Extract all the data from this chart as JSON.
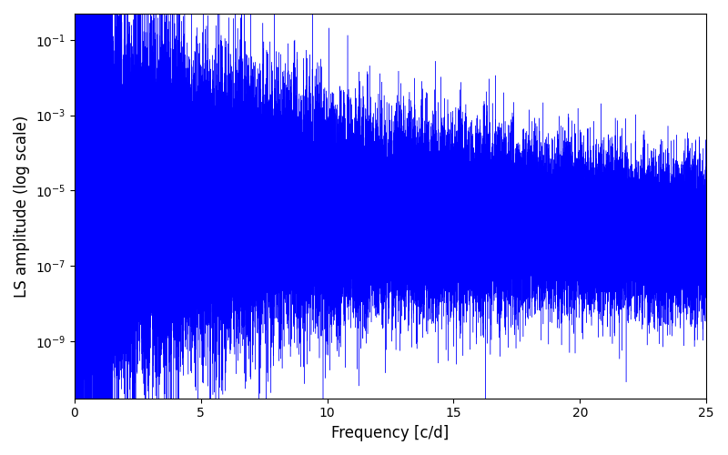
{
  "xlabel": "Frequency [c/d]",
  "ylabel": "LS amplitude (log scale)",
  "xlim": [
    0,
    25
  ],
  "ylim": [
    3e-11,
    0.5
  ],
  "line_color": "#0000ff",
  "background_color": "#ffffff",
  "figsize": [
    8.0,
    5.0
  ],
  "dpi": 100,
  "freq_max": 25.0,
  "n_points": 50000,
  "seed": 42
}
